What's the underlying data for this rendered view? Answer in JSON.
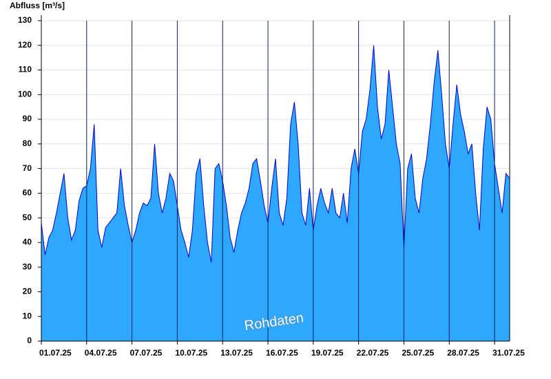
{
  "chart_data": {
    "type": "area",
    "y_label": "Abfluss [m³/s]",
    "annotation": "Rohdaten",
    "x": [
      0,
      0.25,
      0.5,
      0.75,
      1,
      1.25,
      1.5,
      1.75,
      2,
      2.25,
      2.5,
      2.75,
      3,
      3.25,
      3.5,
      3.75,
      4,
      4.25,
      4.5,
      4.75,
      5,
      5.25,
      5.5,
      5.75,
      6,
      6.25,
      6.5,
      6.75,
      7,
      7.25,
      7.5,
      7.75,
      8,
      8.25,
      8.5,
      8.75,
      9,
      9.25,
      9.5,
      9.75,
      10,
      10.25,
      10.5,
      10.75,
      11,
      11.25,
      11.5,
      11.75,
      12,
      12.25,
      12.5,
      12.75,
      13,
      13.25,
      13.5,
      13.75,
      14,
      14.25,
      14.5,
      14.75,
      15,
      15.25,
      15.5,
      15.75,
      16,
      16.25,
      16.5,
      16.75,
      17,
      17.25,
      17.5,
      17.75,
      18,
      18.25,
      18.5,
      18.75,
      19,
      19.25,
      19.5,
      19.75,
      20,
      20.25,
      20.5,
      20.75,
      21,
      21.25,
      21.5,
      21.75,
      22,
      22.25,
      22.5,
      22.75,
      23,
      23.25,
      23.5,
      23.75,
      24,
      24.25,
      24.5,
      24.75,
      25,
      25.25,
      25.5,
      25.75,
      26,
      26.25,
      26.5,
      26.75,
      27,
      27.25,
      27.5,
      27.75,
      28,
      28.25,
      28.5,
      28.75,
      29,
      29.25,
      29.5,
      29.75,
      30,
      30.25,
      30.5,
      30.75,
      31
    ],
    "values": [
      48,
      35,
      42,
      45,
      52,
      60,
      68,
      50,
      41,
      45,
      57,
      62,
      63,
      70,
      88,
      45,
      38,
      46,
      48,
      50,
      52,
      70,
      55,
      47,
      40,
      45,
      52,
      56,
      55,
      58,
      80,
      60,
      52,
      58,
      68,
      65,
      55,
      45,
      40,
      34,
      45,
      68,
      74,
      55,
      40,
      32,
      70,
      72,
      65,
      55,
      42,
      36,
      45,
      52,
      56,
      62,
      72,
      74,
      65,
      55,
      48,
      62,
      74,
      52,
      47,
      58,
      88,
      97,
      80,
      52,
      47,
      62,
      45,
      55,
      62,
      56,
      52,
      62,
      52,
      50,
      60,
      48,
      70,
      78,
      68,
      85,
      90,
      102,
      120,
      95,
      82,
      88,
      110,
      95,
      80,
      72,
      38,
      70,
      76,
      58,
      52,
      66,
      74,
      88,
      105,
      118,
      100,
      80,
      70,
      88,
      104,
      92,
      85,
      76,
      80,
      60,
      45,
      78,
      95,
      90,
      72,
      62,
      52,
      68,
      66
    ],
    "fill_color": "#2ea8ff",
    "line_color": "#0000cc",
    "xlim": [
      0,
      31
    ],
    "xticks": [
      {
        "value": 0,
        "label": "01.07.25"
      },
      {
        "value": 3,
        "label": "04.07.25"
      },
      {
        "value": 6,
        "label": "07.07.25"
      },
      {
        "value": 9,
        "label": "10.07.25"
      },
      {
        "value": 12,
        "label": "13.07.25"
      },
      {
        "value": 15,
        "label": "16.07.25"
      },
      {
        "value": 18,
        "label": "19.07.25"
      },
      {
        "value": 21,
        "label": "22.07.25"
      },
      {
        "value": 24,
        "label": "25.07.25"
      },
      {
        "value": 27,
        "label": "28.07.25"
      },
      {
        "value": 30,
        "label": "31.07.25"
      }
    ],
    "ylim": [
      0,
      130
    ],
    "yticks": [
      0,
      10,
      20,
      30,
      40,
      50,
      60,
      70,
      80,
      90,
      100,
      110,
      120,
      130
    ],
    "grid": true
  }
}
